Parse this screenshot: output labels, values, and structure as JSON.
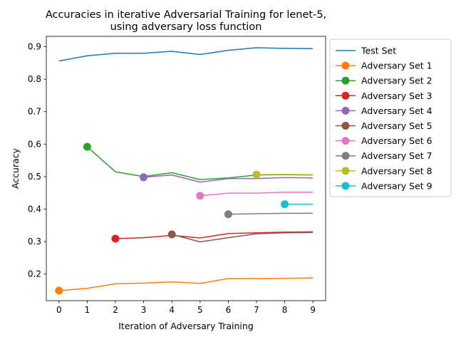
{
  "chart_data": {
    "type": "line",
    "title_lines": [
      "Accuracies in iterative Adversarial Training for lenet-5,",
      "using adversary loss function"
    ],
    "xlabel": "Iteration of Adversary Training",
    "ylabel": "Accuracy",
    "xlim": [
      -0.45,
      9.45
    ],
    "ylim": [
      0.118,
      0.932
    ],
    "x_ticks": [
      0,
      1,
      2,
      3,
      4,
      5,
      6,
      7,
      8,
      9
    ],
    "y_ticks": [
      0.2,
      0.3,
      0.4,
      0.5,
      0.6,
      0.7,
      0.8,
      0.9
    ],
    "y_tick_labels": [
      "0.2",
      "0.3",
      "0.4",
      "0.5",
      "0.6",
      "0.7",
      "0.8",
      "0.9"
    ],
    "grid": false,
    "legend_position": "upper-right-outside",
    "series": [
      {
        "name": "Test Set",
        "color": "#1f77b4",
        "marker": false,
        "x": [
          0,
          1,
          2,
          3,
          4,
          5,
          6,
          7,
          8,
          9
        ],
        "y": [
          0.856,
          0.872,
          0.88,
          0.88,
          0.886,
          0.876,
          0.889,
          0.897,
          0.895,
          0.894
        ]
      },
      {
        "name": "Adversary Set 1",
        "color": "#ff7f0e",
        "marker": true,
        "x": [
          0,
          1,
          2,
          3,
          4,
          5,
          6,
          7,
          8,
          9
        ],
        "y": [
          0.149,
          0.156,
          0.17,
          0.172,
          0.176,
          0.171,
          0.186,
          0.186,
          0.187,
          0.188
        ]
      },
      {
        "name": "Adversary Set 2",
        "color": "#2ca02c",
        "marker": true,
        "x": [
          1,
          2,
          3,
          4,
          5,
          6,
          7,
          8,
          9
        ],
        "y": [
          0.592,
          0.515,
          0.5,
          0.512,
          0.491,
          0.496,
          0.505,
          0.506,
          0.505
        ]
      },
      {
        "name": "Adversary Set 3",
        "color": "#d62728",
        "marker": true,
        "x": [
          2,
          3,
          4,
          5,
          6,
          7,
          8,
          9
        ],
        "y": [
          0.309,
          0.312,
          0.319,
          0.311,
          0.325,
          0.327,
          0.329,
          0.33
        ]
      },
      {
        "name": "Adversary Set 4",
        "color": "#9467bd",
        "marker": true,
        "x": [
          3,
          4,
          5,
          6,
          7,
          8,
          9
        ],
        "y": [
          0.498,
          0.505,
          0.483,
          0.494,
          0.494,
          0.497,
          0.496
        ]
      },
      {
        "name": "Adversary Set 5",
        "color": "#8c564b",
        "marker": true,
        "x": [
          4,
          5,
          6,
          7,
          8,
          9
        ],
        "y": [
          0.322,
          0.299,
          0.312,
          0.324,
          0.327,
          0.328
        ]
      },
      {
        "name": "Adversary Set 6",
        "color": "#e377c2",
        "marker": true,
        "x": [
          5,
          6,
          7,
          8,
          9
        ],
        "y": [
          0.441,
          0.449,
          0.449,
          0.452,
          0.452
        ]
      },
      {
        "name": "Adversary Set 7",
        "color": "#7f7f7f",
        "marker": true,
        "x": [
          6,
          7,
          8,
          9
        ],
        "y": [
          0.384,
          0.386,
          0.387,
          0.387
        ]
      },
      {
        "name": "Adversary Set 8",
        "color": "#bcbd22",
        "marker": true,
        "x": [
          7,
          8,
          9
        ],
        "y": [
          0.506,
          0.507,
          0.506
        ]
      },
      {
        "name": "Adversary Set 9",
        "color": "#17becf",
        "marker": true,
        "x": [
          8,
          9
        ],
        "y": [
          0.415,
          0.415
        ]
      }
    ]
  }
}
